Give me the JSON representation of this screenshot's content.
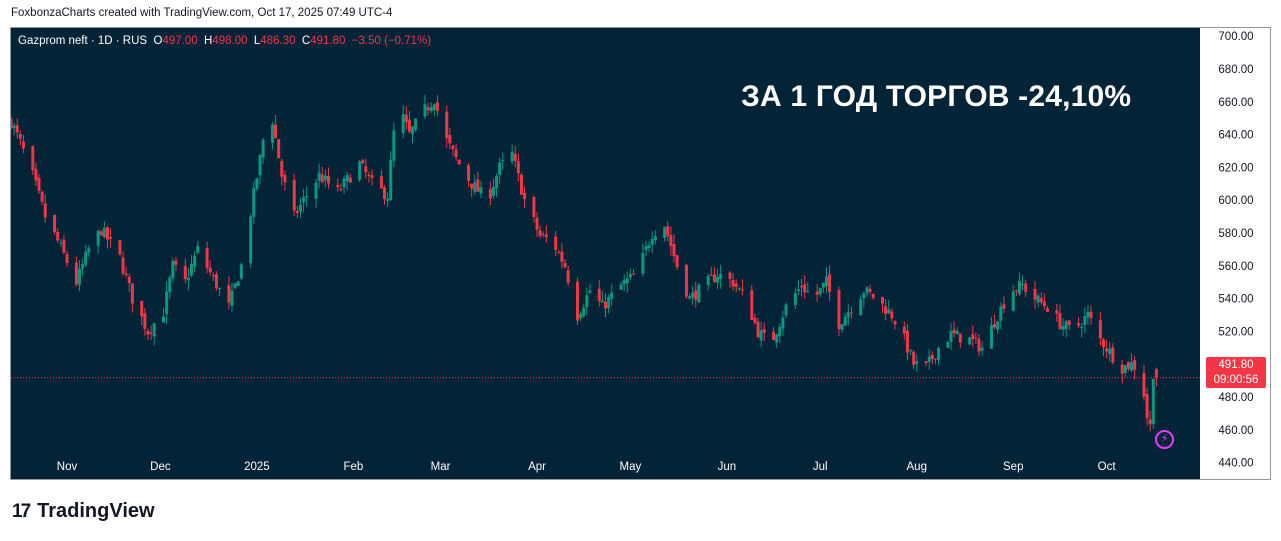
{
  "attribution": "FoxbonzaCharts created with TradingView.com, Oct 17, 2025 07:49 UTC-4",
  "legend": {
    "symbol": "Gazprom neft · 1D · RUS",
    "o_label": "O",
    "o_value": "497.00",
    "h_label": "H",
    "h_value": "498.00",
    "l_label": "L",
    "l_value": "486.30",
    "c_label": "C",
    "c_value": "491.80",
    "change": "−3.50 (−0.71%)"
  },
  "headline": "ЗА 1 ГОД ТОРГОВ -24,10%",
  "price_tag": {
    "price": "491.80",
    "countdown": "09:00:56"
  },
  "brand": {
    "logo_mark": "17",
    "name": "TradingView"
  },
  "icons": {
    "alert": "lightning-icon"
  },
  "colors": {
    "background": "#032337",
    "up": "#089981",
    "down": "#f23645",
    "axis_text": "#131722"
  },
  "chart_data": {
    "type": "candlestick",
    "title": "Gazprom neft · 1D · RUS",
    "y_axis_position": "right",
    "ylim": [
      430,
      705
    ],
    "y_ticks": [
      440,
      460,
      480,
      500,
      520,
      540,
      560,
      580,
      600,
      620,
      640,
      660,
      680,
      700
    ],
    "y_tick_labels": [
      "440.00",
      "460.00",
      "480.00",
      "500.00",
      "520.00",
      "540.00",
      "560.00",
      "580.00",
      "600.00",
      "620.00",
      "640.00",
      "660.00",
      "680.00",
      "700.00"
    ],
    "x_start": "2024-10-14",
    "x_end": "2025-10-31",
    "x_ticks": [
      {
        "label": "Nov",
        "date": "2024-11-01"
      },
      {
        "label": "Dec",
        "date": "2024-12-01"
      },
      {
        "label": "2025",
        "date": "2025-01-01"
      },
      {
        "label": "Feb",
        "date": "2025-02-01"
      },
      {
        "label": "Mar",
        "date": "2025-03-01"
      },
      {
        "label": "Apr",
        "date": "2025-04-01"
      },
      {
        "label": "May",
        "date": "2025-05-01"
      },
      {
        "label": "Jun",
        "date": "2025-06-01"
      },
      {
        "label": "Jul",
        "date": "2025-07-01"
      },
      {
        "label": "Aug",
        "date": "2025-08-01"
      },
      {
        "label": "Sep",
        "date": "2025-09-01"
      },
      {
        "label": "Oct",
        "date": "2025-10-01"
      }
    ],
    "last_price": 491.8,
    "grid": false,
    "close_anchors": [
      [
        "2024-10-14",
        648
      ],
      [
        "2024-10-17",
        635
      ],
      [
        "2024-10-21",
        615
      ],
      [
        "2024-10-25",
        590
      ],
      [
        "2024-10-29",
        575
      ],
      [
        "2024-11-04",
        550
      ],
      [
        "2024-11-08",
        570
      ],
      [
        "2024-11-12",
        582
      ],
      [
        "2024-11-18",
        565
      ],
      [
        "2024-11-22",
        540
      ],
      [
        "2024-11-27",
        520
      ],
      [
        "2024-12-02",
        532
      ],
      [
        "2024-12-05",
        560
      ],
      [
        "2024-12-09",
        550
      ],
      [
        "2024-12-13",
        570
      ],
      [
        "2024-12-18",
        552
      ],
      [
        "2024-12-23",
        535
      ],
      [
        "2024-12-27",
        560
      ],
      [
        "2025-01-02",
        625
      ],
      [
        "2025-01-05",
        660
      ],
      [
        "2025-01-09",
        615
      ],
      [
        "2025-01-13",
        590
      ],
      [
        "2025-01-16",
        600
      ],
      [
        "2025-01-21",
        615
      ],
      [
        "2025-01-27",
        605
      ],
      [
        "2025-02-03",
        622
      ],
      [
        "2025-02-07",
        610
      ],
      [
        "2025-02-12",
        603
      ],
      [
        "2025-02-15",
        660
      ],
      [
        "2025-02-19",
        640
      ],
      [
        "2025-02-24",
        655
      ],
      [
        "2025-02-27",
        662
      ],
      [
        "2025-03-02",
        640
      ],
      [
        "2025-03-06",
        625
      ],
      [
        "2025-03-11",
        610
      ],
      [
        "2025-03-16",
        600
      ],
      [
        "2025-03-20",
        620
      ],
      [
        "2025-03-24",
        628
      ],
      [
        "2025-03-28",
        600
      ],
      [
        "2025-04-02",
        578
      ],
      [
        "2025-04-06",
        575
      ],
      [
        "2025-04-10",
        560
      ],
      [
        "2025-04-14",
        530
      ],
      [
        "2025-04-18",
        545
      ],
      [
        "2025-04-22",
        535
      ],
      [
        "2025-04-28",
        548
      ],
      [
        "2025-05-03",
        555
      ],
      [
        "2025-05-08",
        580
      ],
      [
        "2025-05-12",
        585
      ],
      [
        "2025-05-16",
        560
      ],
      [
        "2025-05-20",
        540
      ],
      [
        "2025-05-25",
        548
      ],
      [
        "2025-05-29",
        555
      ],
      [
        "2025-06-03",
        550
      ],
      [
        "2025-06-07",
        540
      ],
      [
        "2025-06-11",
        520
      ],
      [
        "2025-06-15",
        512
      ],
      [
        "2025-06-20",
        535
      ],
      [
        "2025-06-25",
        548
      ],
      [
        "2025-06-29",
        540
      ],
      [
        "2025-07-03",
        550
      ],
      [
        "2025-07-07",
        525
      ],
      [
        "2025-07-11",
        535
      ],
      [
        "2025-07-15",
        545
      ],
      [
        "2025-07-19",
        540
      ],
      [
        "2025-07-24",
        530
      ],
      [
        "2025-07-27",
        520
      ],
      [
        "2025-07-31",
        500
      ],
      [
        "2025-08-04",
        498
      ],
      [
        "2025-08-08",
        510
      ],
      [
        "2025-08-12",
        518
      ],
      [
        "2025-08-18",
        515
      ],
      [
        "2025-08-22",
        510
      ],
      [
        "2025-08-27",
        530
      ],
      [
        "2025-08-31",
        545
      ],
      [
        "2025-09-04",
        548
      ],
      [
        "2025-09-08",
        540
      ],
      [
        "2025-09-12",
        535
      ],
      [
        "2025-09-16",
        525
      ],
      [
        "2025-09-20",
        520
      ],
      [
        "2025-09-25",
        530
      ],
      [
        "2025-09-29",
        515
      ],
      [
        "2025-10-03",
        505
      ],
      [
        "2025-10-06",
        498
      ],
      [
        "2025-10-09",
        500
      ],
      [
        "2025-10-12",
        496
      ],
      [
        "2025-10-14",
        468
      ],
      [
        "2025-10-15",
        462
      ],
      [
        "2025-10-16",
        495
      ],
      [
        "2025-10-17",
        491.8
      ]
    ]
  }
}
